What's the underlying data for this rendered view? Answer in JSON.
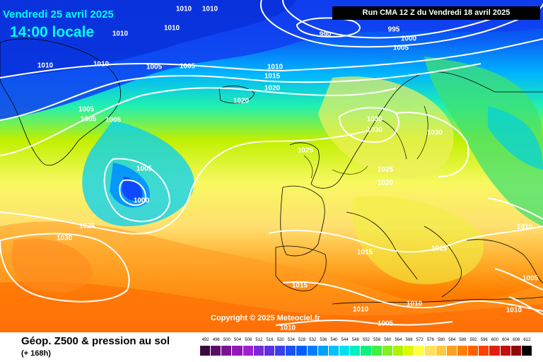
{
  "header": {
    "date": "Vendredi 25 avril 2025",
    "time": "14:00 locale",
    "run": "Run CMA 12 Z du Vendredi 18 avril 2025"
  },
  "copyright": "Copyright © 2025 Meteociel.fr",
  "legend": {
    "title": "Géop. Z500 & pression au sol",
    "forecast": "(+ 168h)",
    "ticks": [
      "492",
      "496",
      "500",
      "504",
      "508",
      "512",
      "516",
      "520",
      "524",
      "528",
      "532",
      "536",
      "540",
      "544",
      "548",
      "552",
      "556",
      "560",
      "564",
      "568",
      "572",
      "576",
      "580",
      "584",
      "588",
      "592",
      "596",
      "600",
      "604",
      "608",
      "612"
    ],
    "colors": [
      "#3a0a3e",
      "#5a0e6a",
      "#7a1494",
      "#9218b8",
      "#a020d0",
      "#7a28d8",
      "#5a30e0",
      "#3840e8",
      "#1c50f0",
      "#0060ff",
      "#0080ff",
      "#00a0ff",
      "#00c0ff",
      "#00e0f0",
      "#00f0c0",
      "#10f080",
      "#40f040",
      "#80f020",
      "#b0f000",
      "#e0f800",
      "#ffff40",
      "#ffe060",
      "#ffc840",
      "#ffa020",
      "#ff8000",
      "#ff6000",
      "#ff4000",
      "#e02010",
      "#c01010",
      "#900808",
      "#000000"
    ]
  },
  "isobar_labels": [
    "1010",
    "1010",
    "1010",
    "1010",
    "1010",
    "1005",
    "1010",
    "1005",
    "1010",
    "1015",
    "1020",
    "990",
    "995",
    "1000",
    "1005",
    "1020",
    "1005",
    "1005",
    "1005",
    "1030",
    "1030",
    "1030",
    "1025",
    "1025",
    "1020",
    "1005",
    "1000",
    "1025",
    "1030",
    "1015",
    "1015",
    "1015",
    "1010",
    "1010",
    "1005",
    "1010",
    "1005",
    "1010",
    "1010"
  ]
}
